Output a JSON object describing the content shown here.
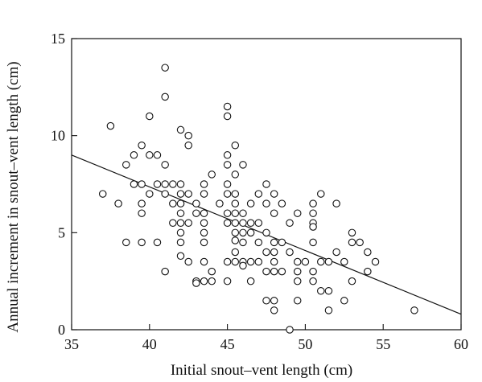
{
  "chart_data": {
    "type": "scatter",
    "xlabel": "Initial snout–vent length (cm)",
    "ylabel": "Annual increment in snout–vent length (cm)",
    "xlim": [
      35,
      60
    ],
    "ylim": [
      0,
      15
    ],
    "xticks": [
      35,
      40,
      45,
      50,
      55,
      60
    ],
    "yticks": [
      0,
      5,
      10,
      15
    ],
    "xtick_labels": [
      "35",
      "40",
      "45",
      "50",
      "55",
      "60"
    ],
    "ytick_labels": [
      "0",
      "5",
      "10",
      "15"
    ],
    "grid": false,
    "marker": "open-circle",
    "regression_line": {
      "x": [
        35,
        60
      ],
      "y": [
        9.0,
        0.8
      ]
    },
    "points": [
      [
        37.0,
        7.0
      ],
      [
        37.5,
        10.5
      ],
      [
        38.0,
        6.5
      ],
      [
        38.5,
        8.5
      ],
      [
        38.5,
        4.5
      ],
      [
        39.0,
        7.5
      ],
      [
        39.0,
        9.0
      ],
      [
        39.5,
        9.5
      ],
      [
        39.5,
        7.5
      ],
      [
        39.5,
        6.5
      ],
      [
        39.5,
        6.0
      ],
      [
        39.5,
        4.5
      ],
      [
        40.0,
        11.0
      ],
      [
        40.0,
        9.0
      ],
      [
        40.0,
        7.0
      ],
      [
        40.5,
        9.0
      ],
      [
        40.5,
        7.5
      ],
      [
        40.5,
        4.5
      ],
      [
        41.0,
        13.5
      ],
      [
        41.0,
        12.0
      ],
      [
        41.0,
        8.5
      ],
      [
        41.0,
        7.5
      ],
      [
        41.0,
        7.0
      ],
      [
        41.0,
        3.0
      ],
      [
        41.5,
        7.5
      ],
      [
        41.5,
        6.5
      ],
      [
        41.5,
        5.5
      ],
      [
        42.0,
        10.3
      ],
      [
        42.0,
        7.5
      ],
      [
        42.0,
        7.0
      ],
      [
        42.0,
        6.5
      ],
      [
        42.0,
        6.0
      ],
      [
        42.0,
        5.5
      ],
      [
        42.0,
        5.0
      ],
      [
        42.0,
        4.5
      ],
      [
        42.0,
        3.8
      ],
      [
        42.5,
        10.0
      ],
      [
        42.5,
        9.5
      ],
      [
        42.5,
        7.0
      ],
      [
        42.5,
        5.5
      ],
      [
        42.5,
        3.5
      ],
      [
        43.0,
        6.5
      ],
      [
        43.0,
        6.0
      ],
      [
        43.0,
        2.5
      ],
      [
        43.0,
        2.4
      ],
      [
        43.5,
        7.5
      ],
      [
        43.5,
        7.0
      ],
      [
        43.5,
        6.0
      ],
      [
        43.5,
        5.5
      ],
      [
        43.5,
        5.0
      ],
      [
        43.5,
        4.5
      ],
      [
        43.5,
        3.5
      ],
      [
        43.5,
        2.5
      ],
      [
        44.0,
        8.0
      ],
      [
        44.0,
        3.0
      ],
      [
        44.0,
        2.5
      ],
      [
        44.5,
        6.5
      ],
      [
        45.0,
        11.5
      ],
      [
        45.0,
        11.0
      ],
      [
        45.0,
        9.0
      ],
      [
        45.0,
        8.5
      ],
      [
        45.0,
        7.5
      ],
      [
        45.0,
        7.0
      ],
      [
        45.0,
        6.0
      ],
      [
        45.0,
        5.5
      ],
      [
        45.0,
        3.5
      ],
      [
        45.0,
        2.5
      ],
      [
        45.5,
        9.5
      ],
      [
        45.5,
        8.0
      ],
      [
        45.5,
        7.0
      ],
      [
        45.5,
        6.5
      ],
      [
        45.5,
        6.0
      ],
      [
        45.5,
        5.5
      ],
      [
        45.5,
        5.0
      ],
      [
        45.5,
        4.6
      ],
      [
        45.5,
        4.0
      ],
      [
        45.5,
        3.5
      ],
      [
        46.0,
        8.5
      ],
      [
        46.0,
        6.0
      ],
      [
        46.0,
        5.5
      ],
      [
        46.0,
        5.0
      ],
      [
        46.0,
        4.5
      ],
      [
        46.0,
        3.5
      ],
      [
        46.0,
        3.3
      ],
      [
        46.5,
        6.5
      ],
      [
        46.5,
        5.5
      ],
      [
        46.5,
        5.0
      ],
      [
        46.5,
        3.5
      ],
      [
        46.5,
        2.5
      ],
      [
        47.0,
        7.0
      ],
      [
        47.0,
        5.5
      ],
      [
        47.0,
        4.5
      ],
      [
        47.0,
        3.5
      ],
      [
        47.5,
        7.5
      ],
      [
        47.5,
        6.5
      ],
      [
        47.5,
        5.0
      ],
      [
        47.5,
        4.0
      ],
      [
        47.5,
        3.0
      ],
      [
        47.5,
        1.5
      ],
      [
        48.0,
        7.0
      ],
      [
        48.0,
        6.0
      ],
      [
        48.0,
        4.5
      ],
      [
        48.0,
        4.0
      ],
      [
        48.0,
        3.5
      ],
      [
        48.0,
        3.0
      ],
      [
        48.0,
        1.5
      ],
      [
        48.0,
        1.0
      ],
      [
        48.5,
        6.5
      ],
      [
        48.5,
        4.5
      ],
      [
        48.5,
        3.0
      ],
      [
        49.0,
        5.5
      ],
      [
        49.0,
        4.0
      ],
      [
        49.0,
        0.0
      ],
      [
        49.5,
        6.0
      ],
      [
        49.5,
        3.5
      ],
      [
        49.5,
        3.0
      ],
      [
        49.5,
        2.5
      ],
      [
        49.5,
        1.5
      ],
      [
        50.0,
        3.5
      ],
      [
        50.5,
        6.5
      ],
      [
        50.5,
        6.0
      ],
      [
        50.5,
        5.5
      ],
      [
        50.5,
        5.3
      ],
      [
        50.5,
        4.5
      ],
      [
        50.5,
        3.0
      ],
      [
        50.5,
        2.5
      ],
      [
        51.0,
        7.0
      ],
      [
        51.0,
        3.5
      ],
      [
        51.0,
        2.0
      ],
      [
        51.5,
        3.5
      ],
      [
        51.5,
        2.0
      ],
      [
        51.5,
        1.0
      ],
      [
        52.0,
        6.5
      ],
      [
        52.0,
        4.0
      ],
      [
        52.5,
        3.5
      ],
      [
        52.5,
        1.5
      ],
      [
        53.0,
        5.0
      ],
      [
        53.0,
        4.5
      ],
      [
        53.0,
        2.5
      ],
      [
        53.5,
        4.5
      ],
      [
        54.0,
        4.0
      ],
      [
        54.0,
        3.0
      ],
      [
        54.5,
        3.5
      ],
      [
        57.0,
        1.0
      ]
    ]
  }
}
